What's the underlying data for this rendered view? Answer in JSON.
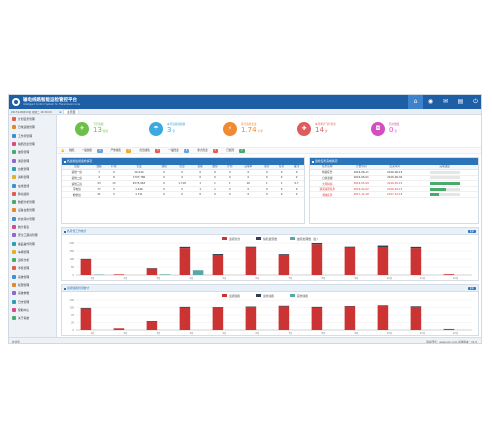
{
  "app": {
    "title": "输电线路智能运检管控平台",
    "subtitle": "Intelligent Control System for Transmission Line"
  },
  "top_icons": [
    {
      "icon": "home-icon",
      "glyph": "⌂"
    },
    {
      "icon": "globe-icon",
      "glyph": "◉"
    },
    {
      "icon": "mail-icon",
      "glyph": "✉"
    },
    {
      "icon": "clipboard-icon",
      "glyph": "▤"
    },
    {
      "icon": "power-icon",
      "glyph": "⏻"
    }
  ],
  "status": {
    "info": "2017年06月20日 星期二 16:30:00",
    "home_tab": "主页面"
  },
  "sidebar": {
    "items": [
      {
        "label": "计划任务管理",
        "color": "#e05c4b"
      },
      {
        "label": "日常运维管理",
        "color": "#e08a2c"
      },
      {
        "label": "工作票管理",
        "color": "#3b8fd4"
      },
      {
        "label": "缺陷隐患管理",
        "color": "#d84a8a"
      },
      {
        "label": "故障管理",
        "color": "#4aa96c"
      },
      {
        "label": "通道管理",
        "color": "#8c6bd1"
      },
      {
        "label": "台账管理",
        "color": "#2b9fb0"
      },
      {
        "label": "资料管理",
        "color": "#e0b02c"
      },
      {
        "label": "在线监测",
        "color": "#3b8fd4"
      },
      {
        "label": "移动巡检",
        "color": "#e05c4b"
      },
      {
        "label": "数据分析管理",
        "color": "#4aa96c"
      },
      {
        "label": "设备台账管理",
        "color": "#e08a2c"
      },
      {
        "label": "状态评价管理",
        "color": "#3b8fd4"
      },
      {
        "label": "统计报表",
        "color": "#d84a8a"
      },
      {
        "label": "安全工器具管理",
        "color": "#8c6bd1"
      },
      {
        "label": "备品备件管理",
        "color": "#2b9fb0"
      },
      {
        "label": "车辆管理",
        "color": "#e0b02c"
      },
      {
        "label": "运检分析",
        "color": "#4aa96c"
      },
      {
        "label": "考核管理",
        "color": "#e05c4b"
      },
      {
        "label": "系统管理",
        "color": "#3b8fd4"
      },
      {
        "label": "权限管理",
        "color": "#e08a2c"
      },
      {
        "label": "系统参数",
        "color": "#8c6bd1"
      },
      {
        "label": "日志管理",
        "color": "#2b9fb0"
      },
      {
        "label": "帮助中心",
        "color": "#d84a8a"
      },
      {
        "label": "关于系统",
        "color": "#4aa96c"
      }
    ]
  },
  "kpis": [
    {
      "label": "飞行巡视",
      "value": "13",
      "unit": "架次",
      "color": "#6cc04a",
      "glyph": "✈"
    },
    {
      "label": "本月巡视线路数",
      "value": "3",
      "unit": "条",
      "color": "#3ba9e0",
      "glyph": "☂"
    },
    {
      "label": "累计巡视长度",
      "value": "1.74",
      "unit": "公里",
      "color": "#f0892f",
      "glyph": "⚡"
    },
    {
      "label": "本月累计飞行架次",
      "value": "14",
      "unit": "次",
      "color": "#e05c5c",
      "glyph": "✚"
    },
    {
      "label": "照片数量",
      "value": "0",
      "unit": "张",
      "color": "#d34fbf",
      "glyph": "◘"
    }
  ],
  "alerts": {
    "label": "缺陷：",
    "items": [
      {
        "text": "一般缺陷",
        "count": "4",
        "color": "#6aa3d8"
      },
      {
        "text": "严重缺陷",
        "count": "0",
        "color": "#f0a830"
      },
      {
        "text": "危急缺陷",
        "count": "0",
        "color": "#e05c4b"
      },
      {
        "text": "一般隐患",
        "count": "6",
        "color": "#6aa3d8"
      },
      {
        "text": "重大隐患",
        "count": "0",
        "color": "#e05c4b"
      },
      {
        "text": "已处理",
        "count": "2",
        "color": "#4aa96c"
      }
    ]
  },
  "table1": {
    "title": "各巡检班组巡检情况",
    "headers": [
      "班组",
      "线路",
      "杆塔",
      "长度",
      "缺陷",
      "隐患",
      "巡视",
      "故障",
      "计划",
      "完成率",
      "照片",
      "任务",
      "备注"
    ],
    "rows": [
      [
        "运维一班",
        "7",
        "9",
        "16.440",
        "0",
        "0",
        "0",
        "0",
        "0",
        "0",
        "0",
        "0",
        "0"
      ],
      [
        "运维二班",
        "4",
        "8",
        "1797.786",
        "0",
        "0",
        "0",
        "0",
        "0",
        "0",
        "0",
        "0",
        "0"
      ],
      [
        "运维三班",
        "23",
        "13",
        "2575.963",
        "0",
        "1.718",
        "1",
        "1",
        "1",
        "16",
        "1",
        "1",
        "0.7"
      ],
      [
        "带电班",
        "77",
        "3",
        "1.446",
        "0",
        "0",
        "1",
        "1",
        "0",
        "0",
        "0",
        "0",
        "0"
      ],
      [
        "检修班",
        "21",
        "3",
        "1.711",
        "0",
        "0",
        "0",
        "0",
        "0",
        "0",
        "0",
        "0",
        "0"
      ]
    ]
  },
  "table2": {
    "title": "巡检任务完成情况",
    "headers": [
      "任务名称",
      "开始时间",
      "结束时间",
      "完成进度"
    ],
    "rows": [
      {
        "name": "特巡任务",
        "start": "2016-06-11",
        "end": "2016-06-19",
        "progress": 0.0,
        "alert": false
      },
      {
        "name": "日常巡视",
        "start": "2016-06-01",
        "end": "2016-06-30",
        "progress": 0.0,
        "alert": false
      },
      {
        "name": "大风特巡",
        "start": "2016-05-09",
        "end": "2016-05-19",
        "progress": 1.0,
        "alert": true
      },
      {
        "name": "通道清理任务",
        "start": "2016-04-02",
        "end": "2016-04-15",
        "progress": 0.55,
        "alert": true
      },
      {
        "name": "消缺任务",
        "start": "2017-12-18",
        "end": "2017-12-18",
        "progress": 0.3,
        "alert": true
      }
    ]
  },
  "chart1_panel": {
    "title": "各月份工作统计",
    "more": "更多"
  },
  "chart2_panel": {
    "title": "巡视缺陷检测统计",
    "more": "更多"
  },
  "footer": {
    "left": "欢迎您",
    "right": "版权所有：www.xxx.com  系统版本：V1.0"
  },
  "chart_data": [
    {
      "type": "bar",
      "legend": [
        "巡视架次",
        "缺陷发现数",
        "故障处理数（台）"
      ],
      "colors": [
        "#cc3333",
        "#333f4f",
        "#5aa8a6"
      ],
      "categories": [
        "1月",
        "2月",
        "3月",
        "4月",
        "5月",
        "6月",
        "7月",
        "8月",
        "9月",
        "10月",
        "11月",
        "12月"
      ],
      "ylim": [
        0,
        200
      ],
      "series": [
        {
          "name": "巡视架次",
          "values": [
            95,
            4,
            40,
            168,
            125,
            170,
            125,
            192,
            170,
            175,
            168,
            5
          ]
        },
        {
          "name": "缺陷发现数",
          "values": [
            6,
            0,
            3,
            8,
            6,
            7,
            5,
            8,
            7,
            9,
            8,
            0
          ]
        },
        {
          "name": "故障处理数（台）",
          "values": [
            3,
            0,
            4,
            30,
            0,
            0,
            0,
            0,
            0,
            0,
            0,
            0
          ]
        }
      ]
    },
    {
      "type": "bar",
      "legend": [
        "巡视缺陷",
        "巡检缺陷",
        "其他缺陷"
      ],
      "colors": [
        "#cc3333",
        "#333f4f",
        "#5aa8a6"
      ],
      "categories": [
        "1月",
        "2月",
        "3月",
        "4月",
        "5月",
        "6月",
        "7月",
        "8月",
        "9月",
        "10月",
        "11月",
        "12月"
      ],
      "ylim": [
        0,
        140
      ],
      "series": [
        {
          "name": "巡视缺陷",
          "values": [
            100,
            8,
            40,
            105,
            105,
            108,
            110,
            105,
            110,
            112,
            108,
            5
          ]
        },
        {
          "name": "巡检缺陷",
          "values": [
            3,
            0,
            2,
            3,
            2,
            2,
            3,
            3,
            2,
            3,
            3,
            0
          ]
        },
        {
          "name": "其他缺陷",
          "values": [
            0,
            0,
            0,
            0,
            0,
            0,
            0,
            0,
            0,
            0,
            0,
            0
          ]
        }
      ]
    }
  ]
}
